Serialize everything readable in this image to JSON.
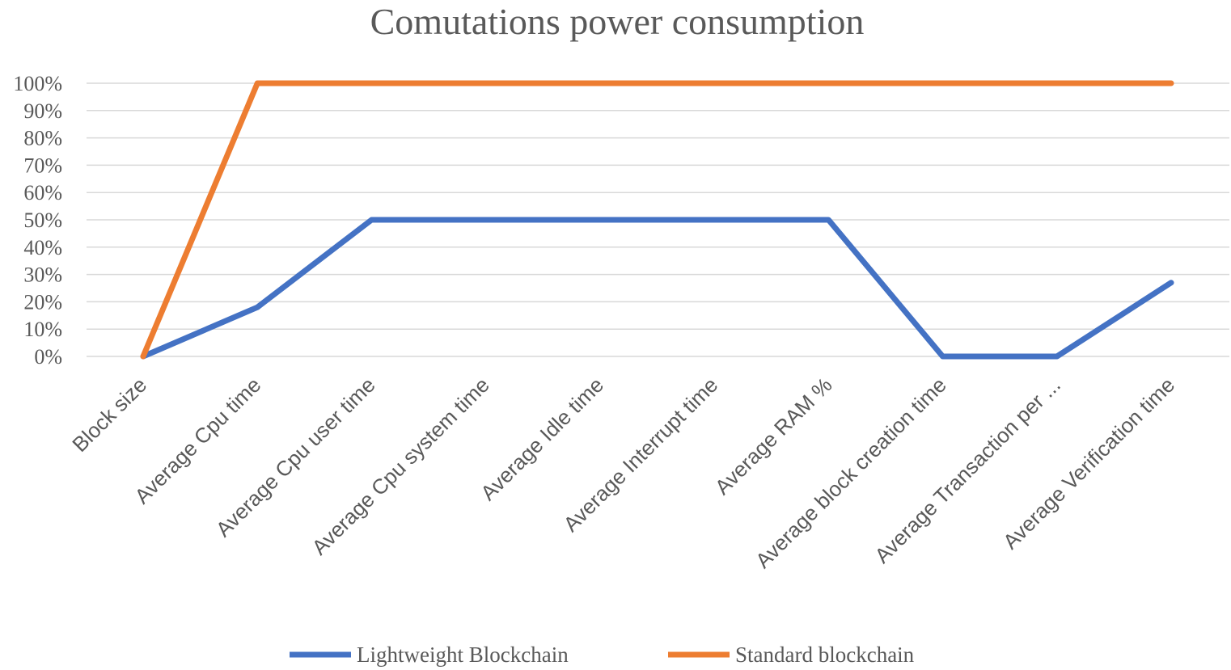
{
  "chart_data": {
    "type": "line",
    "title": "Comutations power consumption",
    "xlabel": "",
    "ylabel": "",
    "ylim": [
      0,
      100
    ],
    "ytick_step": 10,
    "ytick_labels": [
      "0%",
      "10%",
      "20%",
      "30%",
      "40%",
      "50%",
      "60%",
      "70%",
      "80%",
      "90%",
      "100%"
    ],
    "categories": [
      "Block size",
      "Average Cpu time",
      "Average Cpu user time",
      "Average Cpu system time",
      "Average Idle time",
      "Average Interrupt time",
      "Average RAM %",
      "Average block creation time",
      "Average Transaction per ...",
      "Average Verification time"
    ],
    "series": [
      {
        "name": "Lightweight Blockchain",
        "color": "#4472C4",
        "values": [
          0,
          18,
          50,
          50,
          50,
          50,
          50,
          0,
          0,
          27
        ]
      },
      {
        "name": "Standard blockchain",
        "color": "#ED7D31",
        "values": [
          0,
          100,
          100,
          100,
          100,
          100,
          100,
          100,
          100,
          100
        ]
      }
    ],
    "grid": true,
    "legend_position": "bottom"
  }
}
